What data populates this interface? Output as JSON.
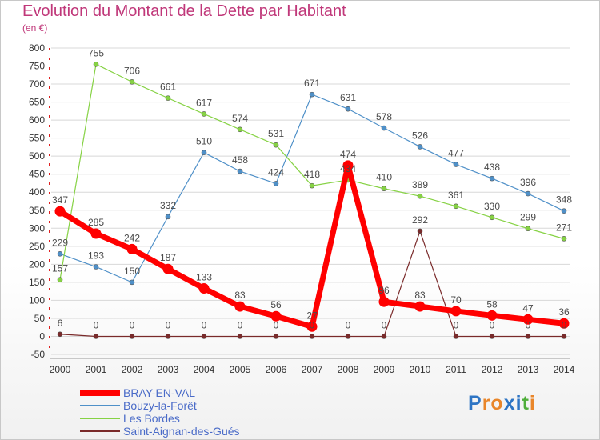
{
  "chart_data": {
    "type": "line",
    "title": "Evolution du Montant de la Dette par Habitant",
    "subtitle": "(en €)",
    "xlabel": "",
    "ylabel": "",
    "ylim": [
      -50,
      800
    ],
    "yticks": [
      "-50",
      "0",
      "50",
      "100",
      "150",
      "200",
      "250",
      "300",
      "350",
      "400",
      "450",
      "500",
      "550",
      "600",
      "650",
      "700",
      "750",
      "800"
    ],
    "categories": [
      "2000",
      "2001",
      "2002",
      "2003",
      "2004",
      "2005",
      "2006",
      "2007",
      "2008",
      "2009",
      "2010",
      "2011",
      "2012",
      "2013",
      "2014"
    ],
    "legend_position": "bottom-left",
    "series": [
      {
        "name": "Bouzy-la-Forêt",
        "color": "#4f90c8",
        "width": 1.2,
        "values": [
          229,
          193,
          150,
          332,
          510,
          458,
          424,
          671,
          631,
          578,
          526,
          477,
          438,
          396,
          348
        ]
      },
      {
        "name": "Les Bordes",
        "color": "#86d244",
        "width": 1.2,
        "values": [
          157,
          755,
          706,
          661,
          617,
          574,
          531,
          418,
          434,
          410,
          389,
          361,
          330,
          299,
          271
        ]
      },
      {
        "name": "Saint-Aignan-des-Gués",
        "color": "#7a2a2a",
        "width": 1.2,
        "values": [
          6,
          0,
          0,
          0,
          0,
          0,
          0,
          0,
          0,
          0,
          292,
          0,
          0,
          0,
          0
        ]
      },
      {
        "name": "BRAY-EN-VAL",
        "color": "#ff0000",
        "width": 7,
        "values": [
          347,
          285,
          242,
          187,
          133,
          83,
          56,
          27,
          474,
          96,
          83,
          70,
          58,
          47,
          36
        ]
      }
    ],
    "legend_order": [
      "BRAY-EN-VAL",
      "Bouzy-la-Forêt",
      "Les Bordes",
      "Saint-Aignan-des-Gués"
    ],
    "label_colors": {
      "Bouzy-la-Forêt": "#4a4a4a",
      "Les Bordes": "#4a4a4a",
      "Saint-Aignan-des-Gués": "#4a4a4a",
      "BRAY-EN-VAL": "#4a4a4a"
    }
  },
  "colors": {
    "title": "#c0387a",
    "legend_text": "#4a6bc8",
    "axis_dash": "#e02020",
    "grid": "#d8d8d8"
  },
  "logo": {
    "text": "Proxiti",
    "letter_colors": [
      "#2e75c4",
      "#e9862a",
      "#e9862a",
      "#2e75c4",
      "#2e75c4",
      "#4fae3a",
      "#e9862a"
    ]
  }
}
